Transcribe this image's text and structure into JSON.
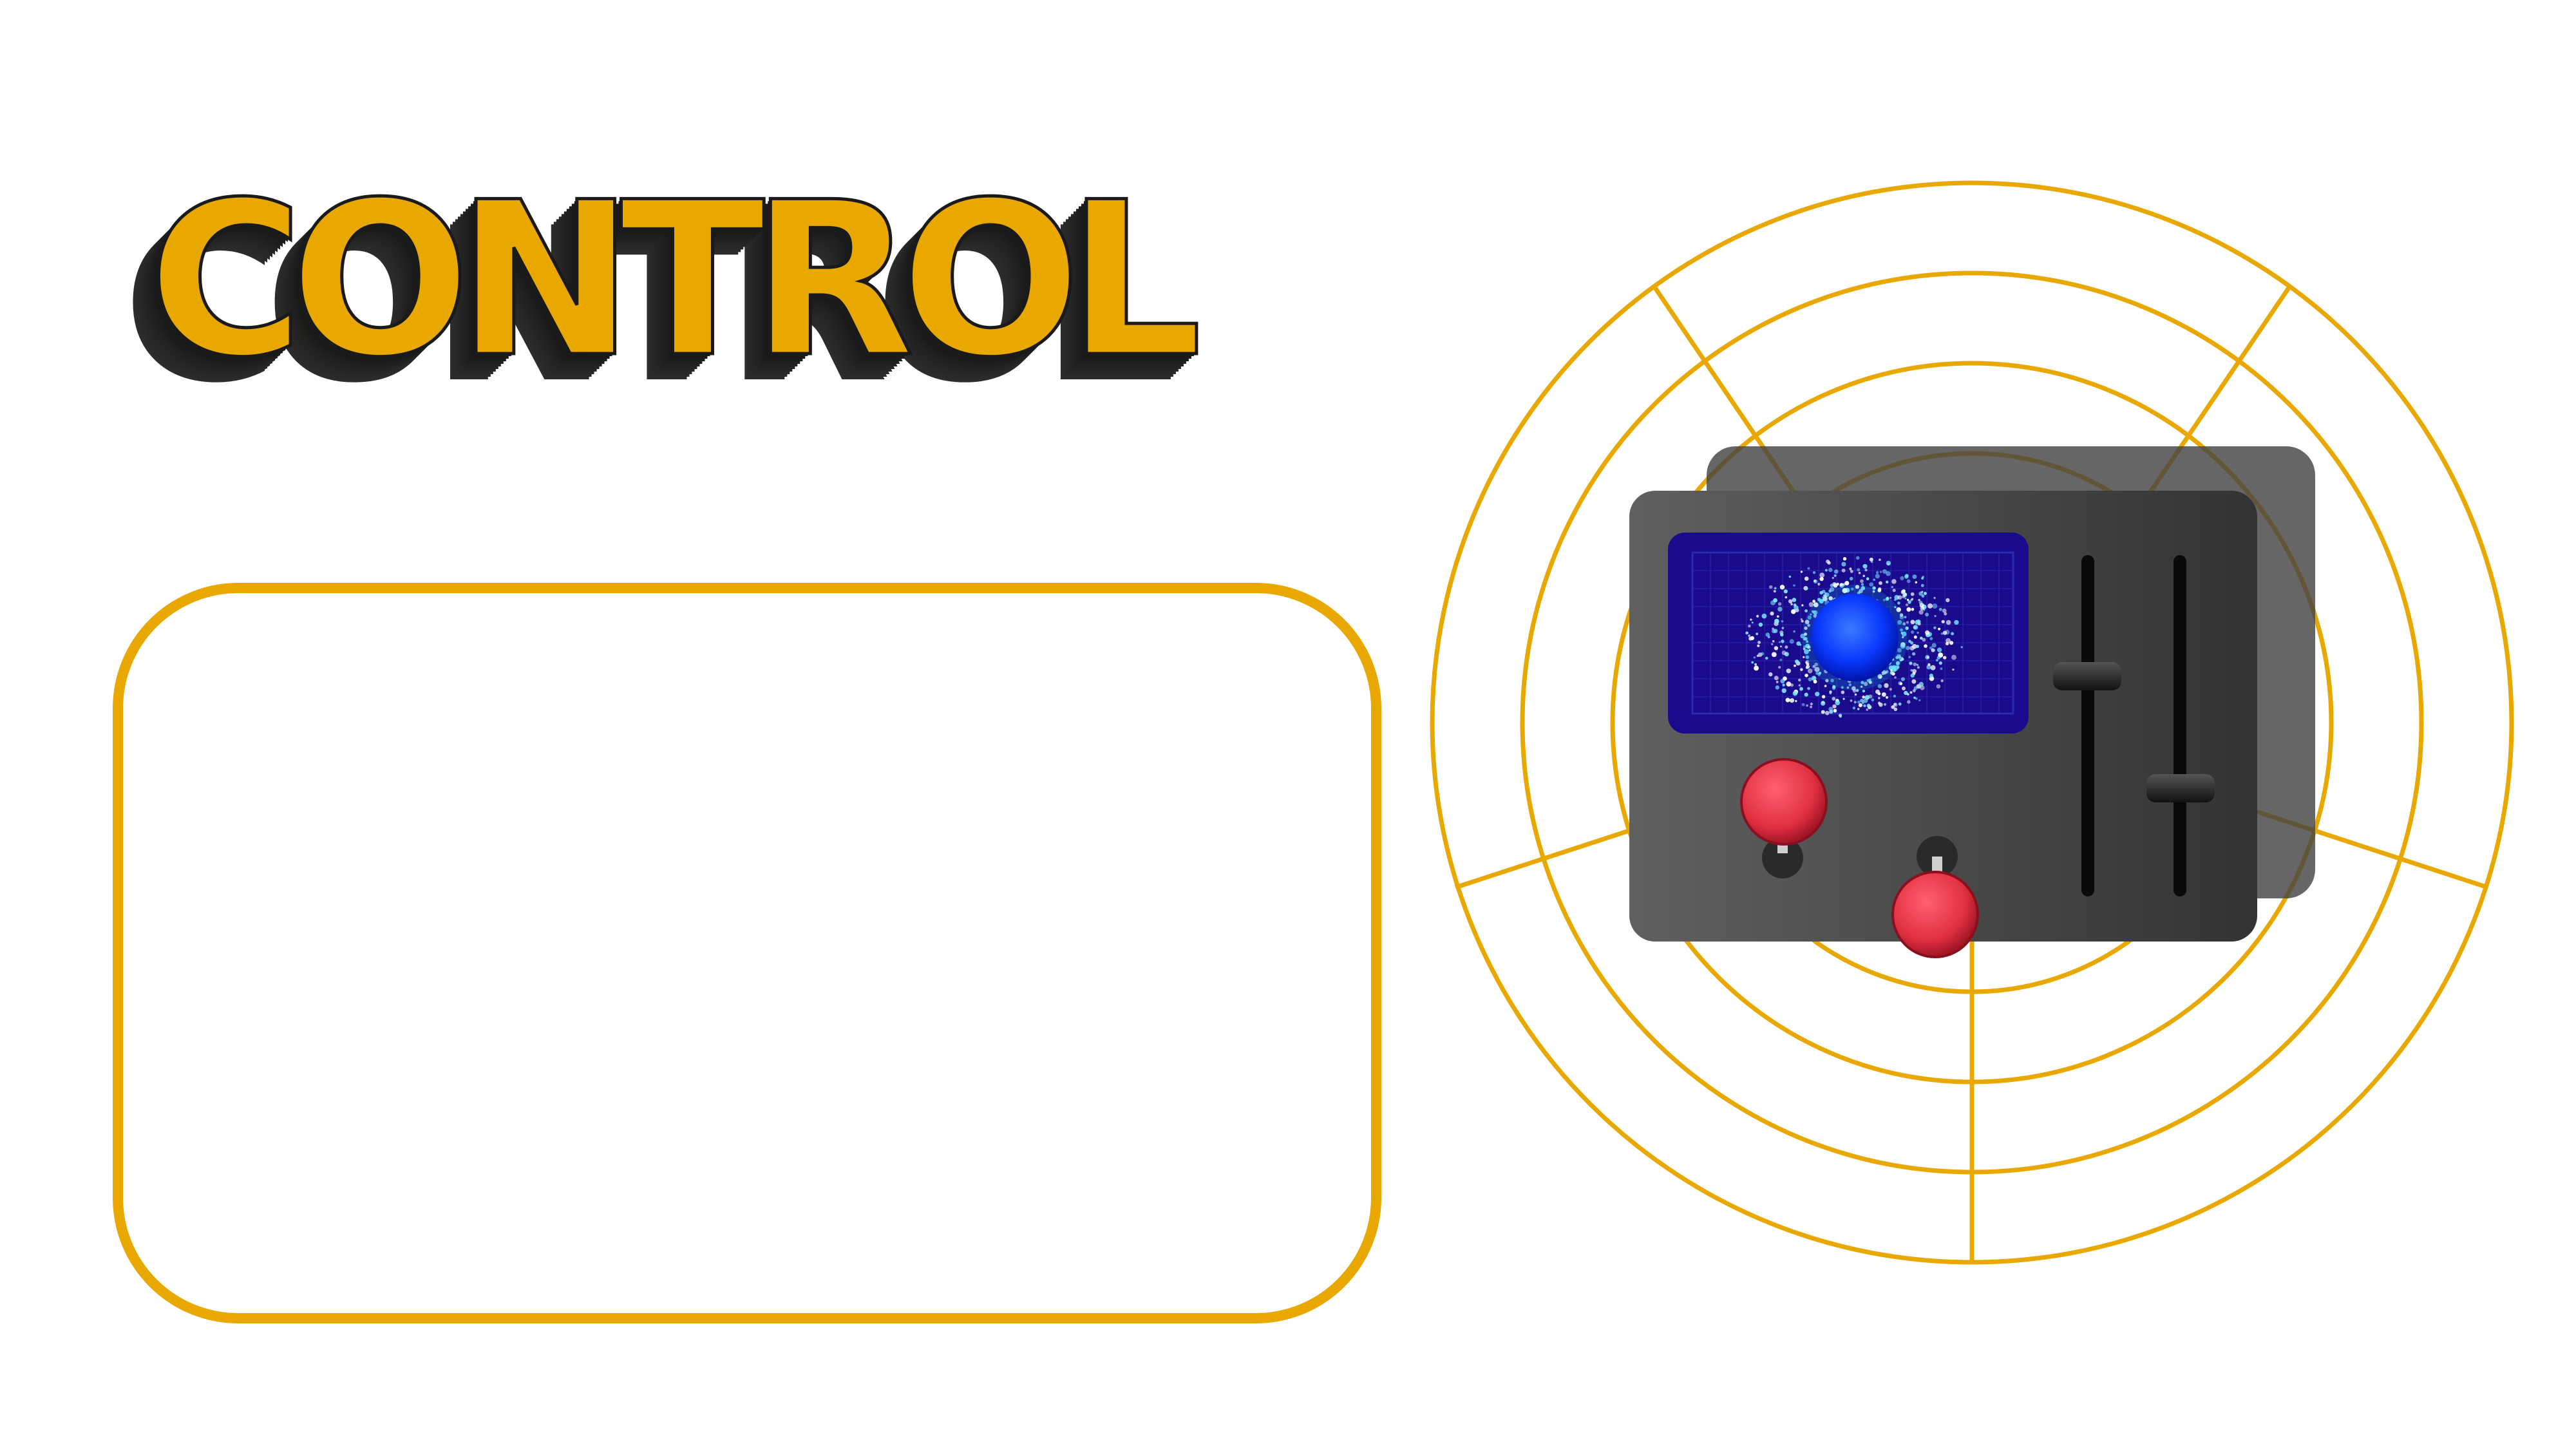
{
  "title": "CONTROL",
  "colors": {
    "accent": "#E8A800",
    "device_body": "#4a4a4a",
    "screen": "#1a0a8c",
    "knob": "#e03040"
  },
  "icons": [
    "radar-rings",
    "control-panel-device",
    "particle-orb",
    "joystick-knob",
    "slider-handle"
  ]
}
